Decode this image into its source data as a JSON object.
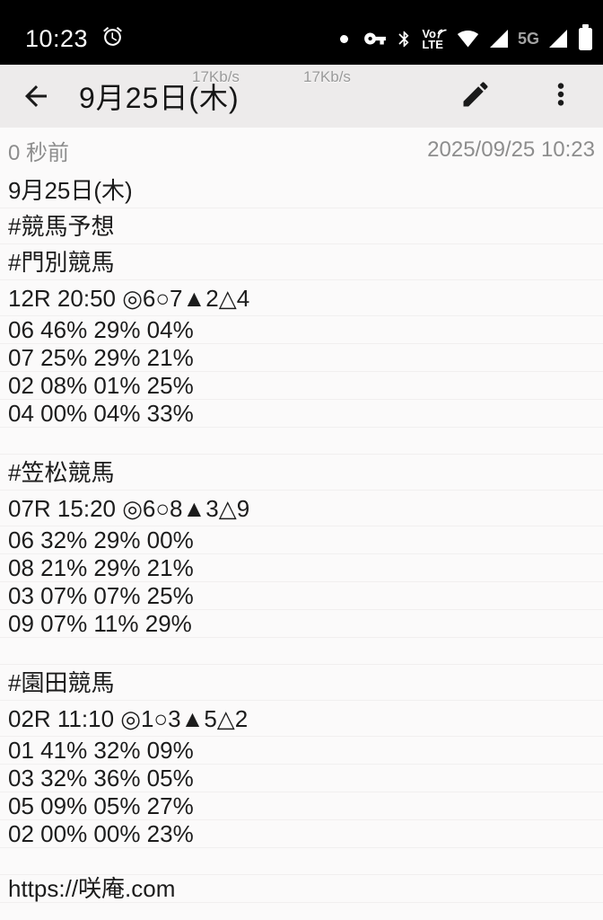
{
  "status_bar": {
    "time": "10:23",
    "left_icons": [
      "alarm-icon"
    ],
    "right_icons": [
      "recording-dot-icon",
      "vpn-key-icon",
      "bluetooth-icon",
      "volte-icon",
      "wifi-icon",
      "cellular-signal-icon",
      "5g-label",
      "cellular-signal-icon",
      "battery-icon"
    ],
    "volte_top": "Vo",
    "volte_bottom": "LTE",
    "network_type_label": "5G",
    "colors": {
      "bar_bg": "#000000",
      "foreground": "#ffffff",
      "dim_label": "#a3a3a3"
    }
  },
  "header": {
    "title": "9月25日(木)",
    "speed_overlay_left": "17Kb/s",
    "speed_overlay_right": "17Kb/s",
    "colors": {
      "bg": "#edebeb",
      "title": "#151515",
      "overlay_text": "#9a9a9a"
    }
  },
  "meta": {
    "age": "0 秒前",
    "datetime": "2025/09/25 10:23",
    "color": "#8d8d8d"
  },
  "note": {
    "lines": [
      {
        "text": "9月25日(木)",
        "kind": "cjk"
      },
      {
        "text": "#競馬予想",
        "kind": "cjk"
      },
      {
        "text": "#門別競馬",
        "kind": "cjk"
      },
      {
        "text": "12R 20:50 ◎6○7▲2△4",
        "kind": "cjk"
      },
      {
        "text": "06 46% 29% 04%",
        "kind": "ascii"
      },
      {
        "text": "07 25% 29% 21%",
        "kind": "ascii"
      },
      {
        "text": "02 08% 01% 25%",
        "kind": "ascii"
      },
      {
        "text": "04 00% 04% 33%",
        "kind": "ascii"
      },
      {
        "text": "",
        "kind": "blank"
      },
      {
        "text": "#笠松競馬",
        "kind": "cjk"
      },
      {
        "text": "07R 15:20 ◎6○8▲3△9",
        "kind": "cjk"
      },
      {
        "text": "06 32% 29% 00%",
        "kind": "ascii"
      },
      {
        "text": "08 21% 29% 21%",
        "kind": "ascii"
      },
      {
        "text": "03 07% 07% 25%",
        "kind": "ascii"
      },
      {
        "text": "09 07% 11% 29%",
        "kind": "ascii"
      },
      {
        "text": "",
        "kind": "blank"
      },
      {
        "text": "#園田競馬",
        "kind": "cjk"
      },
      {
        "text": "02R 11:10 ◎1○3▲5△2",
        "kind": "cjk"
      },
      {
        "text": "01 41% 32% 09%",
        "kind": "ascii"
      },
      {
        "text": "03 32% 36% 05%",
        "kind": "ascii"
      },
      {
        "text": "05 09% 05% 27%",
        "kind": "ascii"
      },
      {
        "text": "02 00% 00% 23%",
        "kind": "ascii"
      },
      {
        "text": "",
        "kind": "blank"
      },
      {
        "text": "https://咲庵.com",
        "kind": "ascii"
      }
    ],
    "colors": {
      "text": "#1c1c1c",
      "ruled_line": "#f1efef",
      "bg": "#fbfafa"
    }
  }
}
